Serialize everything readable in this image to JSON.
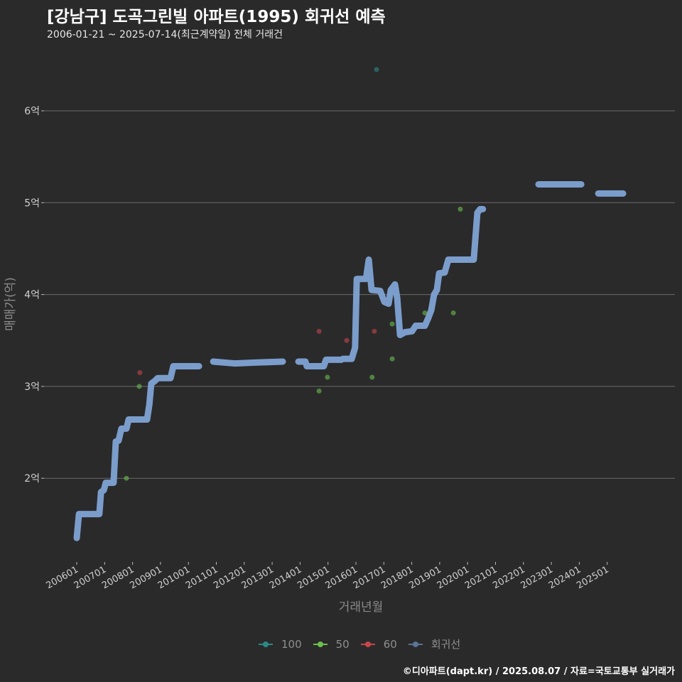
{
  "chart_data": {
    "type": "scatter",
    "title": "[강남구] 도곡그린빌 아파트(1995) 회귀선 예측",
    "subtitle": "2006-01-21 ~ 2025-07-14(최근계약일) 전체 거래건",
    "xlabel": "거래년월",
    "ylabel": "매매가(억)",
    "x_ticks": [
      "200601",
      "200701",
      "200801",
      "200901",
      "201001",
      "201101",
      "201201",
      "201301",
      "201401",
      "201501",
      "201601",
      "201701",
      "201801",
      "201901",
      "202001",
      "202101",
      "202201",
      "202301",
      "202401",
      "202501"
    ],
    "y_ticks": [
      {
        "value": 2,
        "label": "2억"
      },
      {
        "value": 3,
        "label": "3억"
      },
      {
        "value": 4,
        "label": "4억"
      },
      {
        "value": 5,
        "label": "5억"
      },
      {
        "value": 6,
        "label": "6억"
      }
    ],
    "xlim": [
      2006.0,
      2025.6
    ],
    "ylim_eok": [
      1.1,
      6.55
    ],
    "grid": true,
    "legend_position": "bottom",
    "series": [
      {
        "name": "100",
        "color": "#2a8a86",
        "points": [
          [
            2016.74,
            6.45
          ]
        ]
      },
      {
        "name": "50",
        "color": "#6cbf4f",
        "points": [
          [
            2007.78,
            2.0
          ],
          [
            2008.24,
            3.0
          ],
          [
            2014.68,
            2.95
          ],
          [
            2014.98,
            3.1
          ],
          [
            2016.58,
            3.1
          ],
          [
            2017.3,
            3.3
          ],
          [
            2017.3,
            3.68
          ],
          [
            2018.47,
            3.8
          ],
          [
            2019.49,
            3.8
          ],
          [
            2019.74,
            4.93
          ]
        ]
      },
      {
        "name": "60",
        "color": "#c8464b",
        "points": [
          [
            2008.26,
            3.15
          ],
          [
            2014.68,
            3.6
          ],
          [
            2015.67,
            3.5
          ],
          [
            2016.66,
            3.6
          ]
        ]
      },
      {
        "name": "회귀선",
        "color": "#7fa3d4",
        "segments": [
          [
            [
              2006.0,
              1.35
            ],
            [
              2006.08,
              1.61
            ],
            [
              2006.81,
              1.61
            ],
            [
              2006.87,
              1.85
            ],
            [
              2006.97,
              1.87
            ],
            [
              2007.04,
              1.95
            ],
            [
              2007.32,
              1.95
            ],
            [
              2007.4,
              2.4
            ],
            [
              2007.5,
              2.41
            ],
            [
              2007.6,
              2.54
            ],
            [
              2007.78,
              2.54
            ],
            [
              2007.86,
              2.64
            ],
            [
              2008.52,
              2.64
            ],
            [
              2008.6,
              2.8
            ],
            [
              2008.67,
              3.03
            ],
            [
              2008.8,
              3.06
            ],
            [
              2008.9,
              3.09
            ],
            [
              2009.36,
              3.09
            ],
            [
              2009.46,
              3.22
            ],
            [
              2010.38,
              3.22
            ]
          ],
          [
            [
              2010.89,
              3.27
            ],
            [
              2011.65,
              3.25
            ],
            [
              2012.46,
              3.26
            ],
            [
              2013.38,
              3.27
            ]
          ],
          [
            [
              2013.94,
              3.27
            ],
            [
              2014.19,
              3.27
            ],
            [
              2014.24,
              3.22
            ],
            [
              2014.85,
              3.22
            ],
            [
              2014.93,
              3.29
            ],
            [
              2015.47,
              3.29
            ],
            [
              2015.54,
              3.3
            ],
            [
              2015.85,
              3.3
            ],
            [
              2015.97,
              3.42
            ],
            [
              2016.03,
              4.17
            ],
            [
              2016.36,
              4.17
            ],
            [
              2016.46,
              4.38
            ],
            [
              2016.56,
              4.05
            ],
            [
              2016.87,
              4.04
            ],
            [
              2017.02,
              3.92
            ],
            [
              2017.17,
              3.9
            ],
            [
              2017.25,
              4.05
            ],
            [
              2017.4,
              4.11
            ],
            [
              2017.48,
              3.96
            ],
            [
              2017.58,
              3.56
            ],
            [
              2017.76,
              3.59
            ],
            [
              2018.01,
              3.6
            ],
            [
              2018.14,
              3.66
            ],
            [
              2018.47,
              3.66
            ],
            [
              2018.6,
              3.75
            ],
            [
              2018.7,
              3.83
            ],
            [
              2018.8,
              4.0
            ],
            [
              2018.9,
              4.05
            ],
            [
              2018.98,
              4.23
            ],
            [
              2019.18,
              4.24
            ],
            [
              2019.31,
              4.38
            ],
            [
              2020.22,
              4.38
            ],
            [
              2020.35,
              4.89
            ],
            [
              2020.45,
              4.93
            ],
            [
              2020.55,
              4.93
            ]
          ],
          [
            [
              2022.54,
              5.2
            ],
            [
              2024.07,
              5.2
            ]
          ],
          [
            [
              2024.68,
              5.1
            ],
            [
              2025.57,
              5.1
            ]
          ]
        ]
      }
    ]
  },
  "footer": "©디아파트(dapt.kr) / 2025.08.07 / 자료=국토교통부 실거래가"
}
